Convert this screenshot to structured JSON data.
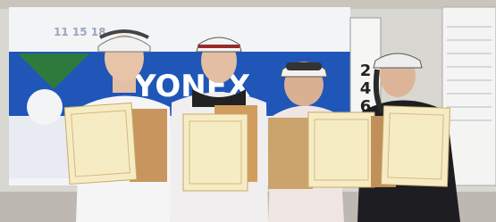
{
  "banner": {
    "brand": "YONEX"
  },
  "scoreboard": {
    "digits": [
      "2",
      "4",
      "6"
    ]
  }
}
